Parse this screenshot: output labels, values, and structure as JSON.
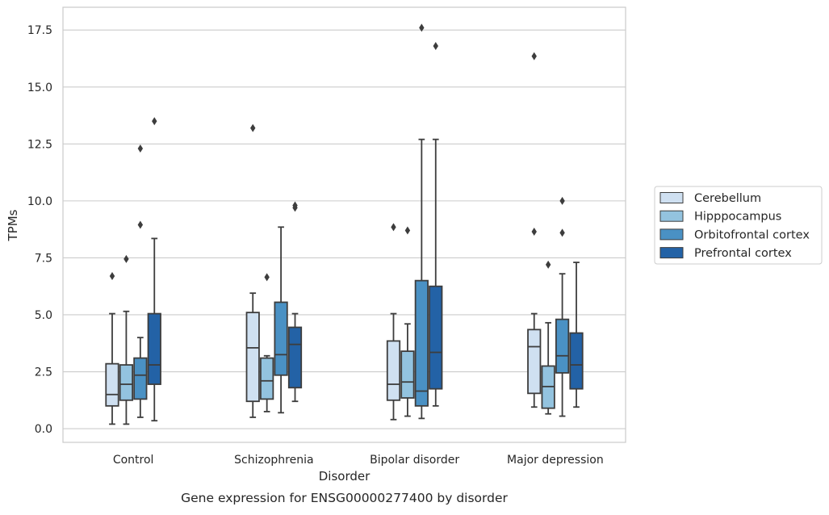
{
  "chart_data": {
    "type": "boxplot",
    "xlabel": "Disorder",
    "ylabel": "TPMs",
    "caption": "Gene expression for ENSG00000277400 by disorder",
    "ylim": [
      -0.6,
      18.5
    ],
    "yticks": [
      0.0,
      2.5,
      5.0,
      7.5,
      10.0,
      12.5,
      15.0,
      17.5
    ],
    "ytick_labels": [
      "0.0",
      "2.5",
      "5.0",
      "7.5",
      "10.0",
      "12.5",
      "15.0",
      "17.5"
    ],
    "grid": true,
    "grid_axis": "y",
    "legend_position": "right",
    "categories": [
      "Control",
      "Schizophrenia",
      "Bipolar disorder",
      "Major depression"
    ],
    "series": [
      {
        "name": "Cerebellum",
        "color": "#cfe0f1",
        "boxes": [
          {
            "whislo": 0.2,
            "q1": 1.0,
            "med": 1.5,
            "q3": 2.85,
            "whishi": 5.05,
            "fliers": [
              6.7
            ]
          },
          {
            "whislo": 0.5,
            "q1": 1.2,
            "med": 3.55,
            "q3": 5.1,
            "whishi": 5.95,
            "fliers": [
              13.2
            ]
          },
          {
            "whislo": 0.4,
            "q1": 1.25,
            "med": 1.95,
            "q3": 3.85,
            "whishi": 5.05,
            "fliers": [
              8.85
            ]
          },
          {
            "whislo": 0.95,
            "q1": 1.55,
            "med": 3.6,
            "q3": 4.35,
            "whishi": 5.05,
            "fliers": [
              8.65,
              16.35
            ]
          }
        ]
      },
      {
        "name": "Hipppocampus",
        "color": "#93c3df",
        "boxes": [
          {
            "whislo": 0.2,
            "q1": 1.25,
            "med": 1.95,
            "q3": 2.8,
            "whishi": 5.15,
            "fliers": [
              7.45
            ]
          },
          {
            "whislo": 0.75,
            "q1": 1.3,
            "med": 2.1,
            "q3": 3.1,
            "whishi": 3.2,
            "fliers": [
              6.65
            ]
          },
          {
            "whislo": 0.55,
            "q1": 1.35,
            "med": 2.05,
            "q3": 3.4,
            "whishi": 4.6,
            "fliers": [
              8.7
            ]
          },
          {
            "whislo": 0.65,
            "q1": 0.9,
            "med": 1.85,
            "q3": 2.75,
            "whishi": 4.65,
            "fliers": [
              7.2
            ]
          }
        ]
      },
      {
        "name": "Orbitofrontal cortex",
        "color": "#4a91c4",
        "boxes": [
          {
            "whislo": 0.5,
            "q1": 1.3,
            "med": 2.35,
            "q3": 3.1,
            "whishi": 4.0,
            "fliers": [
              8.95,
              12.3
            ]
          },
          {
            "whislo": 0.7,
            "q1": 2.35,
            "med": 3.25,
            "q3": 5.55,
            "whishi": 8.85,
            "fliers": []
          },
          {
            "whislo": 0.45,
            "q1": 1.0,
            "med": 1.65,
            "q3": 6.5,
            "whishi": 12.7,
            "fliers": [
              17.6
            ]
          },
          {
            "whislo": 0.55,
            "q1": 2.45,
            "med": 3.2,
            "q3": 4.8,
            "whishi": 6.8,
            "fliers": [
              8.6,
              10.0
            ]
          }
        ]
      },
      {
        "name": "Prefrontal cortex",
        "color": "#2362a6",
        "boxes": [
          {
            "whislo": 0.35,
            "q1": 1.95,
            "med": 2.8,
            "q3": 5.05,
            "whishi": 8.35,
            "fliers": [
              13.5
            ]
          },
          {
            "whislo": 1.2,
            "q1": 1.8,
            "med": 3.7,
            "q3": 4.45,
            "whishi": 5.05,
            "fliers": [
              9.7,
              9.8
            ]
          },
          {
            "whislo": 1.0,
            "q1": 1.75,
            "med": 3.35,
            "q3": 6.25,
            "whishi": 12.7,
            "fliers": [
              16.8
            ]
          },
          {
            "whislo": 0.95,
            "q1": 1.75,
            "med": 2.8,
            "q3": 4.2,
            "whishi": 7.3,
            "fliers": []
          }
        ]
      }
    ]
  }
}
